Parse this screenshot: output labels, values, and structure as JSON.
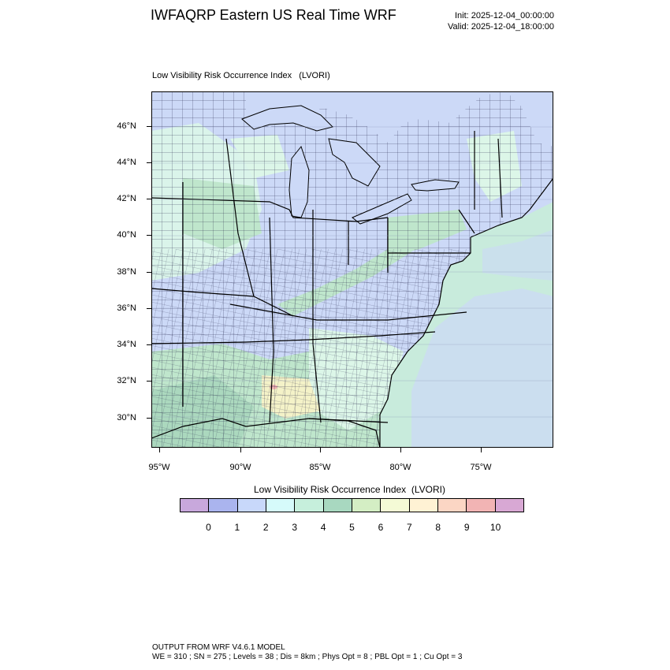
{
  "header": {
    "title": "IWFAQRP Eastern US Real Time WRF",
    "init": "Init: 2025-12-04_00:00:00",
    "valid": "Valid: 2025-12-04_18:00:00"
  },
  "plot": {
    "title": "Low Visibility Risk Occurrence Index   (LVORI)",
    "lat_labels": [
      "46°N",
      "44°N",
      "42°N",
      "40°N",
      "38°N",
      "36°N",
      "34°N",
      "32°N",
      "30°N"
    ],
    "lon_labels": [
      "95°W",
      "90°W",
      "85°W",
      "80°W",
      "75°W"
    ]
  },
  "colorbar": {
    "title": "Low Visibility Risk Occurrence Index  (LVORI)",
    "colors": [
      "#c8a8dc",
      "#aab4ee",
      "#c8d8fa",
      "#d6fafa",
      "#c6efdc",
      "#a8d8c0",
      "#d4eec4",
      "#f4fad6",
      "#fff2d4",
      "#fbd6c4",
      "#f2b4b4",
      "#d8a8d4"
    ],
    "labels": [
      "0",
      "1",
      "2",
      "3",
      "4",
      "5",
      "6",
      "7",
      "8",
      "9",
      "10"
    ]
  },
  "map_colors": {
    "land_base": "#ccd9f7",
    "lake": "#ccd9f7",
    "ocean_near": "#c8ecd8",
    "green_zone": "#bfe6cc",
    "light_zone": "#dcf6e8",
    "dark_zone": "#a9d6bd",
    "warm_zone": "#f4f2c8",
    "red_spot": "#f2b4b4"
  },
  "footer": {
    "line1": "OUTPUT FROM WRF V4.6.1 MODEL",
    "line2": "WE = 310 ; SN = 275 ; Levels = 38 ; Dis = 8km ; Phys Opt = 8 ; PBL Opt = 1 ; Cu Opt = 3"
  }
}
